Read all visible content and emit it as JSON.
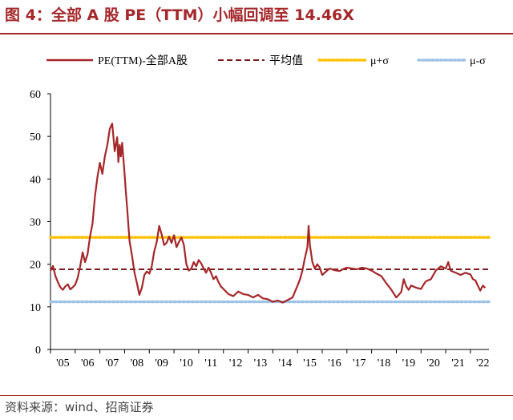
{
  "title": "图 4：全部 A 股 PE（TTM）小幅回调至 14.46X",
  "source": "资料来源：wind、招商证券",
  "colors": {
    "accent": "#a4272a",
    "pe": "#a4272a",
    "mean": "#7b1c1c",
    "plus": "#ffc000",
    "minus": "#9dc3e6"
  },
  "chart_data": {
    "type": "line",
    "title": "图 4：全部 A 股 PE（TTM）小幅回调至 14.46X",
    "xlabel": "",
    "ylabel": "",
    "ylim": [
      0,
      60
    ],
    "yticks": [
      0,
      10,
      20,
      30,
      40,
      50,
      60
    ],
    "xlim": [
      2005.0,
      2022.75
    ],
    "xtick_labels": [
      "'05",
      "'06",
      "'07",
      "'08",
      "'09",
      "'10",
      "'11",
      "'12",
      "'13",
      "'14",
      "'15",
      "'16",
      "'17",
      "'18",
      "'19",
      "'20",
      "'21",
      "'22"
    ],
    "legend_position": "top",
    "grid": false,
    "series": [
      {
        "name": "PE(TTM)-全部A股",
        "style": "solid",
        "x": [
          2005.0,
          2005.1,
          2005.2,
          2005.3,
          2005.4,
          2005.5,
          2005.6,
          2005.7,
          2005.8,
          2005.9,
          2006.0,
          2006.1,
          2006.2,
          2006.3,
          2006.4,
          2006.5,
          2006.6,
          2006.7,
          2006.8,
          2006.9,
          2007.0,
          2007.1,
          2007.2,
          2007.3,
          2007.4,
          2007.5,
          2007.6,
          2007.7,
          2007.75,
          2007.8,
          2007.85,
          2007.9,
          2008.0,
          2008.05,
          2008.1,
          2008.2,
          2008.3,
          2008.4,
          2008.5,
          2008.6,
          2008.7,
          2008.8,
          2008.9,
          2009.0,
          2009.1,
          2009.2,
          2009.3,
          2009.4,
          2009.5,
          2009.6,
          2009.7,
          2009.8,
          2009.9,
          2010.0,
          2010.1,
          2010.2,
          2010.3,
          2010.4,
          2010.5,
          2010.6,
          2010.7,
          2010.8,
          2010.9,
          2011.0,
          2011.1,
          2011.2,
          2011.3,
          2011.4,
          2011.5,
          2011.6,
          2011.7,
          2011.8,
          2011.9,
          2012.0,
          2012.2,
          2012.4,
          2012.6,
          2012.8,
          2013.0,
          2013.2,
          2013.4,
          2013.6,
          2013.8,
          2014.0,
          2014.2,
          2014.4,
          2014.6,
          2014.8,
          2015.0,
          2015.1,
          2015.2,
          2015.3,
          2015.4,
          2015.45,
          2015.5,
          2015.6,
          2015.7,
          2015.8,
          2015.9,
          2016.0,
          2016.1,
          2016.2,
          2016.3,
          2016.5,
          2016.7,
          2016.9,
          2017.0,
          2017.2,
          2017.4,
          2017.6,
          2017.8,
          2018.0,
          2018.2,
          2018.4,
          2018.6,
          2018.8,
          2019.0,
          2019.1,
          2019.2,
          2019.3,
          2019.4,
          2019.5,
          2019.6,
          2019.8,
          2020.0,
          2020.1,
          2020.2,
          2020.4,
          2020.6,
          2020.8,
          2021.0,
          2021.1,
          2021.2,
          2021.4,
          2021.6,
          2021.8,
          2022.0,
          2022.1,
          2022.2,
          2022.3,
          2022.4,
          2022.5,
          2022.6
        ],
        "y": [
          18.5,
          19.6,
          17.2,
          15.8,
          14.6,
          14.0,
          14.8,
          15.3,
          14.1,
          14.6,
          15.2,
          16.8,
          19.5,
          22.8,
          20.5,
          22.3,
          26.5,
          29.5,
          36.0,
          40.5,
          43.8,
          41.2,
          45.3,
          48.0,
          51.8,
          53.0,
          46.5,
          49.8,
          44.0,
          48.0,
          45.3,
          48.5,
          41.0,
          37.0,
          33.5,
          25.5,
          22.0,
          18.0,
          15.5,
          12.8,
          14.5,
          17.5,
          18.3,
          17.8,
          19.5,
          23.0,
          25.2,
          29.0,
          27.0,
          24.5,
          25.0,
          26.5,
          25.0,
          26.8,
          24.0,
          25.2,
          26.3,
          24.5,
          20.0,
          18.5,
          19.0,
          20.5,
          19.5,
          21.0,
          20.2,
          19.0,
          18.0,
          19.2,
          18.0,
          16.5,
          17.2,
          15.8,
          14.8,
          14.2,
          13.0,
          12.5,
          13.6,
          13.0,
          12.8,
          12.2,
          12.8,
          12.0,
          11.8,
          11.2,
          11.5,
          11.0,
          11.6,
          12.2,
          15.0,
          16.5,
          18.5,
          21.5,
          24.0,
          29.0,
          24.5,
          20.5,
          19.0,
          20.0,
          19.2,
          17.5,
          18.0,
          18.5,
          19.0,
          18.6,
          18.4,
          19.0,
          19.2,
          19.0,
          18.8,
          19.2,
          19.0,
          18.5,
          17.8,
          17.2,
          15.5,
          14.0,
          12.2,
          12.8,
          13.5,
          16.5,
          14.8,
          14.0,
          15.0,
          14.5,
          14.2,
          15.2,
          16.0,
          16.5,
          18.5,
          19.5,
          19.0,
          20.5,
          18.5,
          18.0,
          17.5,
          18.0,
          17.6,
          16.5,
          16.2,
          15.0,
          13.8,
          15.0,
          14.46
        ],
        "color": "#a4272a"
      },
      {
        "name": "平均值",
        "style": "dashed",
        "value": 18.8,
        "color": "#7b1c1c"
      },
      {
        "name": "μ+σ",
        "style": "dotted",
        "value": 26.3,
        "color": "#ffc000"
      },
      {
        "name": "μ-σ",
        "style": "dotted",
        "value": 11.2,
        "color": "#9dc3e6"
      }
    ]
  }
}
